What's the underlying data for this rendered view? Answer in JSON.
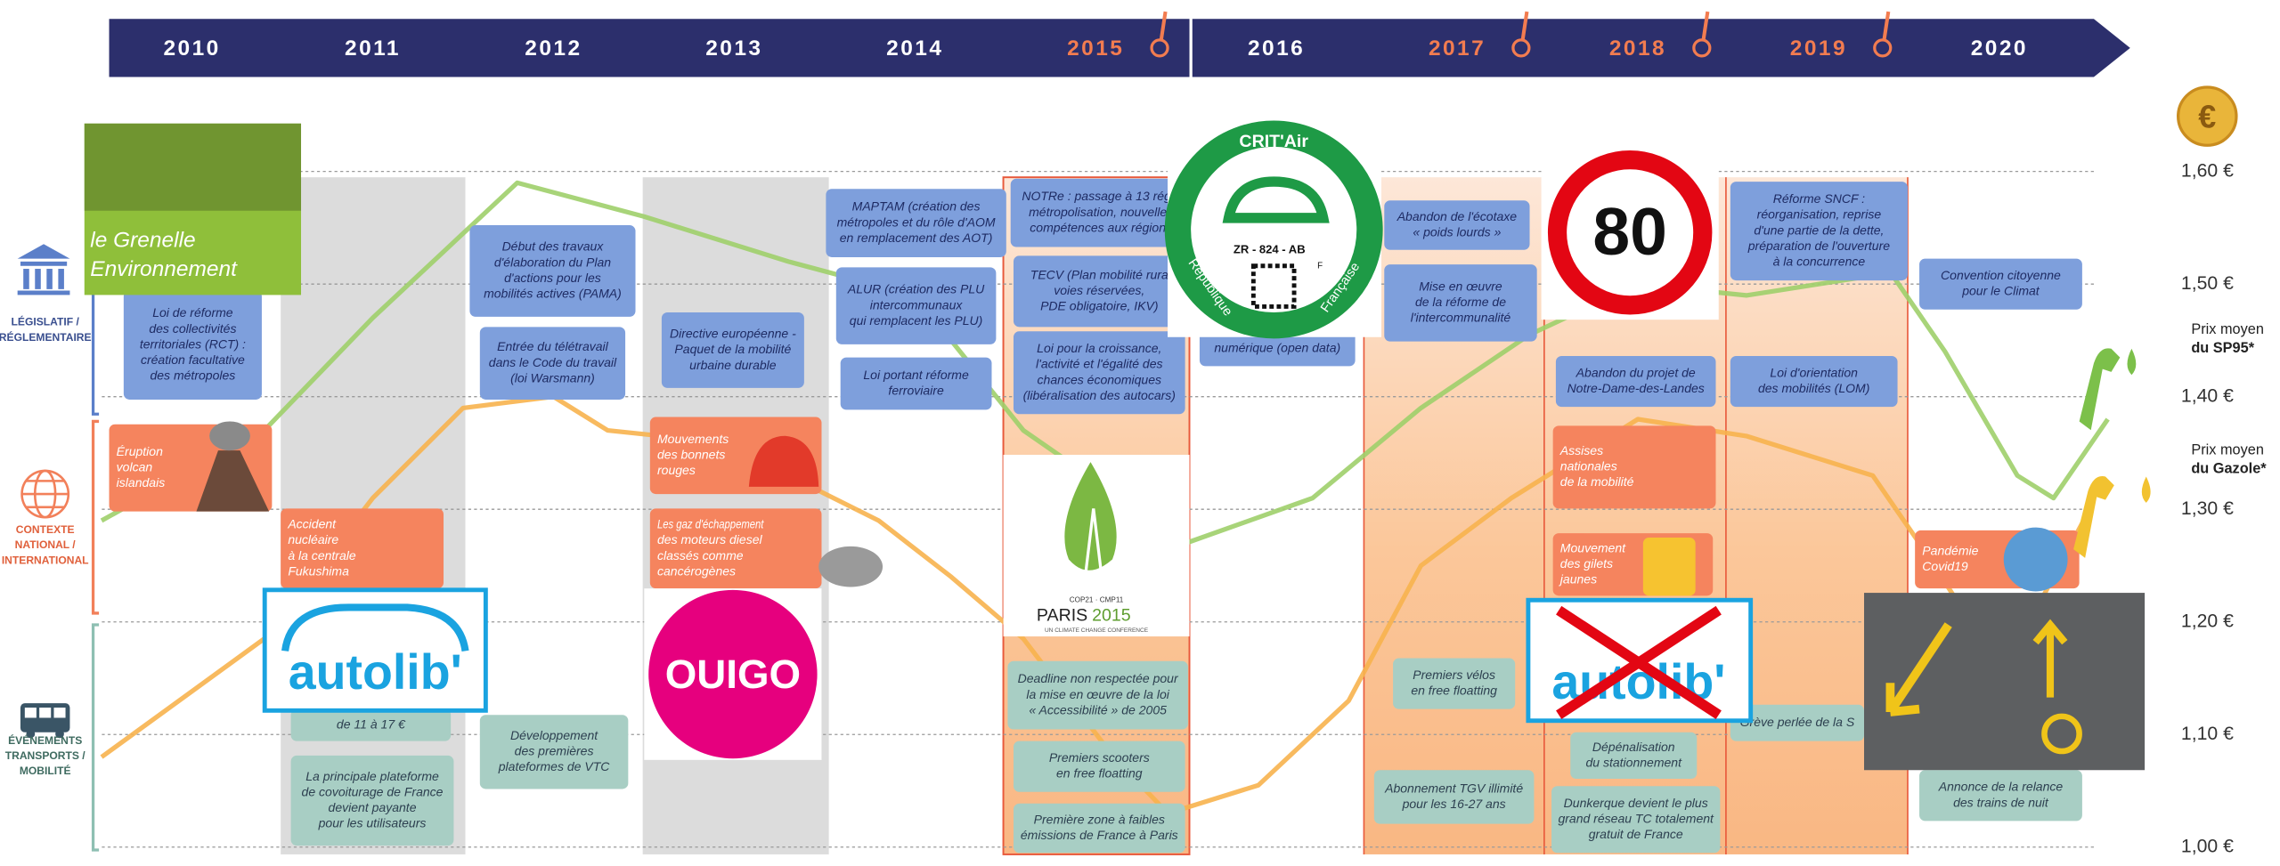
{
  "years": [
    {
      "label": "2010",
      "highlight": false
    },
    {
      "label": "2011",
      "highlight": false
    },
    {
      "label": "2012",
      "highlight": false
    },
    {
      "label": "2013",
      "highlight": false
    },
    {
      "label": "2014",
      "highlight": false
    },
    {
      "label": "2015",
      "highlight": true
    },
    {
      "label": "2016",
      "highlight": false
    },
    {
      "label": "2017",
      "highlight": true
    },
    {
      "label": "2018",
      "highlight": true
    },
    {
      "label": "2019",
      "highlight": true
    },
    {
      "label": "2020",
      "highlight": false
    }
  ],
  "rows": [
    {
      "lines": [
        "LÉGISLATIF /",
        "RÉGLEMENTAIRE"
      ]
    },
    {
      "lines": [
        "CONTEXTE",
        "NATIONAL /",
        "INTERNATIONAL"
      ]
    },
    {
      "lines": [
        "ÉVÉNEMENTS",
        "TRANSPORTS /",
        "MOBILITÉ"
      ]
    }
  ],
  "prices": {
    "ylim": [
      1.0,
      1.6
    ],
    "yticks": [
      {
        "value": 1.6,
        "label": "1,60 €"
      },
      {
        "value": 1.5,
        "label": "1,50 €"
      },
      {
        "value": 1.4,
        "label": "1,40 €"
      },
      {
        "value": 1.3,
        "label": "1,30 €"
      },
      {
        "value": 1.2,
        "label": "1,20 €"
      },
      {
        "value": 1.1,
        "label": "1,10 €"
      },
      {
        "value": 1.0,
        "label": "1,00 €"
      }
    ],
    "series": [
      {
        "name_lines": [
          "Prix moyen",
          "du SP95*"
        ],
        "color": "#9fcf6a",
        "x": [
          2009.5,
          2010.4,
          2011.0,
          2011.8,
          2012.5,
          2013.3,
          2014.0,
          2014.6,
          2015.5,
          2016.2,
          2016.8,
          2017.4,
          2018.0,
          2018.6,
          2019.4,
          2019.7,
          2020.1,
          2020.3,
          2020.6
        ],
        "values": [
          1.29,
          1.37,
          1.47,
          1.59,
          1.56,
          1.52,
          1.49,
          1.37,
          1.27,
          1.31,
          1.39,
          1.455,
          1.5,
          1.49,
          1.51,
          1.44,
          1.33,
          1.31,
          1.38
        ]
      },
      {
        "name_lines": [
          "Prix moyen",
          "du Gazole*"
        ],
        "color": "#f7b24e",
        "x": [
          2009.5,
          2010.4,
          2011.0,
          2011.5,
          2012.0,
          2012.3,
          2012.6,
          2013.3,
          2013.8,
          2014.2,
          2014.6,
          2015.1,
          2015.4,
          2015.9,
          2016.4,
          2016.8,
          2017.3,
          2018.0,
          2018.6,
          2019.3,
          2019.6,
          2019.9,
          2020.2,
          2020.5
        ],
        "values": [
          1.08,
          1.185,
          1.31,
          1.39,
          1.4,
          1.37,
          1.365,
          1.33,
          1.29,
          1.24,
          1.185,
          1.08,
          1.03,
          1.055,
          1.13,
          1.25,
          1.31,
          1.38,
          1.365,
          1.33,
          1.26,
          1.185,
          1.21,
          1.3
        ]
      }
    ]
  },
  "events": [
    {
      "lines": [
        "Loi de réforme",
        "des collectivités",
        "territoriales (RCT) :",
        "création facultative",
        "des métropoles"
      ]
    },
    {
      "lines": [
        "Début des travaux",
        "d'élaboration du Plan",
        "d'actions pour les",
        "mobilités actives (PAMA)"
      ]
    },
    {
      "lines": [
        "Entrée du télétravail",
        "dans le Code du travail",
        "(loi Warsmann)"
      ]
    },
    {
      "lines": [
        "Directive européenne -",
        "Paquet de la mobilité",
        "urbaine durable"
      ]
    },
    {
      "lines": [
        "MAPTAM (création des",
        "métropoles et du rôle d'AOM",
        "en remplacement des AOT)"
      ]
    },
    {
      "lines": [
        "ALUR (création des PLU",
        "intercommunaux",
        "qui remplacent les PLU)"
      ]
    },
    {
      "lines": [
        "Loi portant réforme",
        "ferroviaire"
      ]
    },
    {
      "lines": [
        "NOTRe : passage à 13 régi",
        "métropolisation, nouvelle",
        "compétences aux région"
      ]
    },
    {
      "lines": [
        "TECV (Plan mobilité rura",
        "voies réservées,",
        "PDE obligatoire, IKV)"
      ]
    },
    {
      "lines": [
        "Loi pour la croissance,",
        "l'activité et l'égalité des",
        "chances économiques",
        "(libéralisation des autocars)"
      ]
    },
    {
      "lines": [
        "numérique (open data)"
      ]
    },
    {
      "lines": [
        "Abandon de l'écotaxe",
        "« poids lourds »"
      ]
    },
    {
      "lines": [
        "Mise en œuvre",
        "de la réforme de",
        "l'intercommunalité"
      ]
    },
    {
      "lines": [
        "Abandon du projet de",
        "Notre-Dame-des-Landes"
      ]
    },
    {
      "lines": [
        "Réforme SNCF :",
        "réorganisation, reprise",
        "d'une partie de la dette,",
        "préparation de l'ouverture",
        "à la concurrence"
      ]
    },
    {
      "lines": [
        "Loi d'orientation",
        "des mobilités (LOM)"
      ]
    },
    {
      "lines": [
        "Convention citoyenne",
        "pour le Climat"
      ]
    },
    {
      "lines": [
        "Éruption",
        "volcan",
        "islandais"
      ]
    },
    {
      "lines": [
        "Accident",
        "nucléaire",
        "à la centrale",
        "Fukushima"
      ]
    },
    {
      "lines": [
        "Mouvements",
        "des bonnets",
        "rouges"
      ]
    },
    {
      "lines": [
        "Les gaz d'échappement",
        "des moteurs diesel",
        "classés comme",
        "cancérogènes"
      ]
    },
    {
      "lines": [
        "Assises",
        "nationales",
        "de la mobilité"
      ]
    },
    {
      "lines": [
        "Mouvement",
        "des gilets",
        "jaunes"
      ]
    },
    {
      "lines": [
        "Pandémie",
        "Covid19"
      ]
    },
    {
      "lines": [
        "de 11 à 17 €"
      ]
    },
    {
      "lines": [
        "La principale plateforme",
        "de covoiturage de France",
        "devient payante",
        "pour les utilisateurs"
      ]
    },
    {
      "lines": [
        "Développement",
        "des premières",
        "plateformes de VTC"
      ]
    },
    {
      "lines": [
        "Deadline non respectée pour",
        "la mise en œuvre de la loi",
        "« Accessibilité » de 2005"
      ]
    },
    {
      "lines": [
        "Premiers scooters",
        "en free floatting"
      ]
    },
    {
      "lines": [
        "Première zone à faibles",
        "émissions de France à Paris"
      ]
    },
    {
      "lines": [
        "Premiers vélos",
        "en free floatting"
      ]
    },
    {
      "lines": [
        "Abonnement TGV illimité",
        "pour les 16-27 ans"
      ]
    },
    {
      "lines": [
        "Dépénalisation",
        "du stationnement"
      ]
    },
    {
      "lines": [
        "Dunkerque devient le plus",
        "grand réseau TC totalement",
        "gratuit de France"
      ]
    },
    {
      "lines": [
        "Grève perlée de la S"
      ]
    },
    {
      "lines": [
        "Annonce de la relance",
        "des trains de nuit"
      ]
    }
  ],
  "logos": {
    "grenelle": [
      "le Grenelle",
      "Environnement"
    ],
    "autolib": "autolib'",
    "ouigo": "OUIGO",
    "critair": {
      "title": "CRIT'Air",
      "code": "ZR - 824 - AB",
      "left": "République",
      "right": "Française",
      "f": "F"
    },
    "speed": "80",
    "cop": {
      "top": "COP21 · CMP11",
      "main": "PARIS",
      "year": "2015",
      "sub": "UN CLIMATE CHANGE CONFERENCE"
    },
    "autolib_closed": "autolib'",
    "euro": "€"
  }
}
